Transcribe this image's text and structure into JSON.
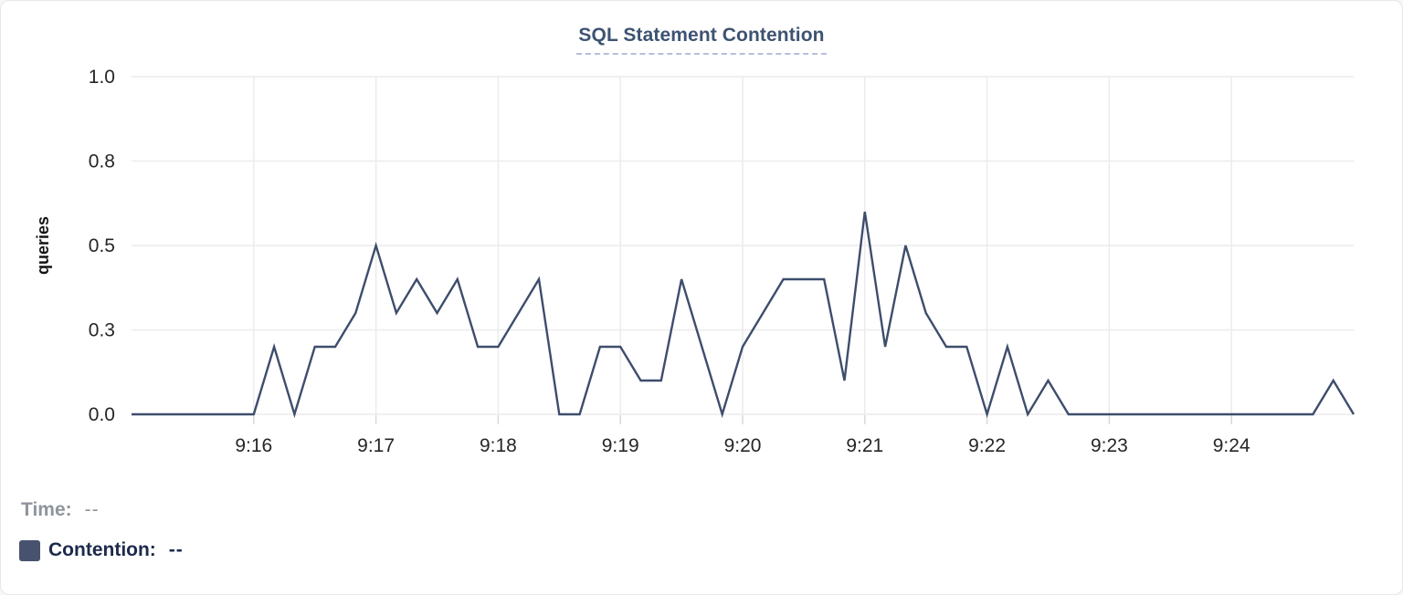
{
  "header": {
    "title": "SQL Statement Contention"
  },
  "readout": {
    "time_label": "Time:",
    "time_value": "--",
    "series_label": "Contention:",
    "series_value": "--",
    "swatch_color": "#47536e"
  },
  "chart_data": {
    "type": "line",
    "title": "SQL Statement Contention",
    "xlabel": "",
    "ylabel": "queries",
    "ylim": [
      0,
      1.0
    ],
    "grid": true,
    "legend_position": "none",
    "x_start": "9:15:00",
    "x_end": "9:25:00",
    "point_interval_seconds": 10,
    "x_tick_labels": [
      "9:16",
      "9:17",
      "9:18",
      "9:19",
      "9:20",
      "9:21",
      "9:22",
      "9:23",
      "9:24"
    ],
    "y_ticks": {
      "values": [
        0,
        0.25,
        0.5,
        0.75,
        1.0
      ],
      "labels": [
        "0.0",
        "0.3",
        "0.5",
        "0.8",
        "1.0"
      ]
    },
    "series": [
      {
        "name": "Contention",
        "unit": "queries",
        "color": "#3e4d6c",
        "times": [
          "9:15:00",
          "9:15:10",
          "9:15:20",
          "9:15:30",
          "9:15:40",
          "9:15:50",
          "9:16:00",
          "9:16:10",
          "9:16:20",
          "9:16:30",
          "9:16:40",
          "9:16:50",
          "9:17:00",
          "9:17:10",
          "9:17:20",
          "9:17:30",
          "9:17:40",
          "9:17:50",
          "9:18:00",
          "9:18:10",
          "9:18:20",
          "9:18:30",
          "9:18:40",
          "9:18:50",
          "9:19:00",
          "9:19:10",
          "9:19:20",
          "9:19:30",
          "9:19:40",
          "9:19:50",
          "9:20:00",
          "9:20:10",
          "9:20:20",
          "9:20:30",
          "9:20:40",
          "9:20:50",
          "9:21:00",
          "9:21:10",
          "9:21:20",
          "9:21:30",
          "9:21:40",
          "9:21:50",
          "9:22:00",
          "9:22:10",
          "9:22:20",
          "9:22:30",
          "9:22:40",
          "9:22:50",
          "9:23:00",
          "9:23:10",
          "9:23:20",
          "9:23:30",
          "9:23:40",
          "9:23:50",
          "9:24:00",
          "9:24:10",
          "9:24:20",
          "9:24:30",
          "9:24:40",
          "9:24:50",
          "9:25:00"
        ],
        "values": [
          0,
          0,
          0,
          0,
          0,
          0,
          0,
          0.2,
          0,
          0.2,
          0.2,
          0.3,
          0.5,
          0.3,
          0.4,
          0.3,
          0.4,
          0.2,
          0.2,
          0.3,
          0.4,
          0,
          0,
          0.2,
          0.2,
          0.1,
          0.1,
          0.4,
          0.2,
          0,
          0.2,
          0.3,
          0.4,
          0.4,
          0.4,
          0.1,
          0.6,
          0.2,
          0.5,
          0.3,
          0.2,
          0.2,
          0,
          0.2,
          0,
          0.1,
          0,
          0,
          0,
          0,
          0,
          0,
          0,
          0,
          0,
          0,
          0,
          0,
          0,
          0.1,
          0
        ]
      }
    ]
  }
}
